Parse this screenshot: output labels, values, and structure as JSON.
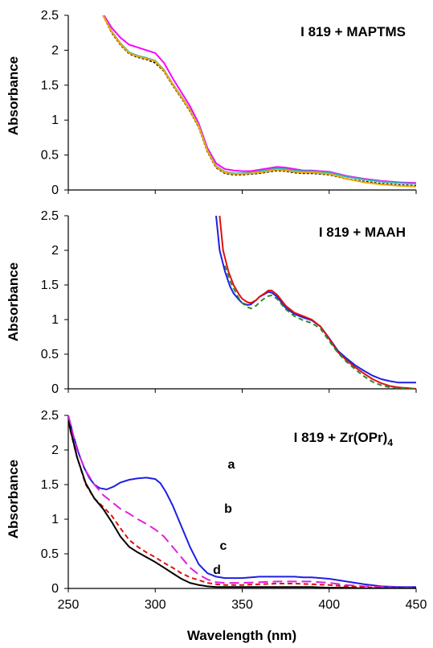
{
  "chart_data": [
    {
      "type": "line",
      "title": "I 819 + MAPTMS",
      "xlabel": "",
      "ylabel": "Absorbance",
      "xlim": [
        250,
        450
      ],
      "ylim": [
        0,
        2.5
      ],
      "yticks": [
        "0",
        "0.5",
        "1",
        "1.5",
        "2",
        "2.5"
      ],
      "series": [
        {
          "color": "#ff00ff",
          "dash": "solid",
          "x": [
            270,
            275,
            280,
            285,
            290,
            295,
            300,
            305,
            310,
            315,
            320,
            325,
            330,
            335,
            340,
            345,
            350,
            355,
            360,
            365,
            370,
            375,
            380,
            385,
            390,
            395,
            400,
            410,
            420,
            430,
            440,
            450
          ],
          "y": [
            2.52,
            2.32,
            2.18,
            2.08,
            2.04,
            2.0,
            1.96,
            1.82,
            1.6,
            1.4,
            1.2,
            0.95,
            0.6,
            0.38,
            0.3,
            0.28,
            0.27,
            0.27,
            0.29,
            0.31,
            0.33,
            0.32,
            0.3,
            0.28,
            0.28,
            0.27,
            0.26,
            0.2,
            0.16,
            0.13,
            0.11,
            0.1
          ]
        },
        {
          "color": "#000000",
          "dash": "3 2",
          "x": [
            270,
            275,
            280,
            285,
            290,
            295,
            300,
            305,
            310,
            315,
            320,
            325,
            330,
            335,
            340,
            345,
            350,
            355,
            360,
            365,
            370,
            375,
            380,
            385,
            390,
            395,
            400,
            410,
            420,
            430,
            440,
            450
          ],
          "y": [
            2.5,
            2.25,
            2.08,
            1.95,
            1.9,
            1.87,
            1.82,
            1.7,
            1.5,
            1.32,
            1.13,
            0.9,
            0.55,
            0.32,
            0.24,
            0.22,
            0.22,
            0.23,
            0.24,
            0.26,
            0.28,
            0.27,
            0.25,
            0.24,
            0.24,
            0.23,
            0.22,
            0.16,
            0.12,
            0.09,
            0.07,
            0.06
          ]
        },
        {
          "color": "#2db5b5",
          "dash": "solid",
          "x": [
            270,
            275,
            280,
            285,
            290,
            295,
            300,
            305,
            310,
            315,
            320,
            325,
            330,
            335,
            340,
            345,
            350,
            355,
            360,
            365,
            370,
            375,
            380,
            385,
            390,
            395,
            400,
            410,
            420,
            430,
            440,
            450
          ],
          "y": [
            2.5,
            2.27,
            2.1,
            1.97,
            1.92,
            1.89,
            1.85,
            1.72,
            1.52,
            1.34,
            1.15,
            0.92,
            0.57,
            0.34,
            0.26,
            0.24,
            0.24,
            0.25,
            0.27,
            0.29,
            0.31,
            0.3,
            0.28,
            0.27,
            0.27,
            0.26,
            0.25,
            0.19,
            0.15,
            0.12,
            0.1,
            0.09
          ]
        },
        {
          "color": "#f2a900",
          "dash": "solid",
          "x": [
            270,
            275,
            280,
            285,
            290,
            295,
            300,
            305,
            310,
            315,
            320,
            325,
            330,
            335,
            340,
            345,
            350,
            355,
            360,
            365,
            370,
            375,
            380,
            385,
            390,
            395,
            400,
            410,
            420,
            430,
            440,
            450
          ],
          "y": [
            2.5,
            2.26,
            2.09,
            1.96,
            1.91,
            1.88,
            1.84,
            1.71,
            1.51,
            1.33,
            1.14,
            0.91,
            0.56,
            0.33,
            0.25,
            0.23,
            0.23,
            0.24,
            0.25,
            0.27,
            0.29,
            0.28,
            0.26,
            0.25,
            0.25,
            0.24,
            0.23,
            0.16,
            0.11,
            0.08,
            0.06,
            0.05
          ]
        }
      ]
    },
    {
      "type": "line",
      "title": "I 819 + MAAH",
      "xlabel": "",
      "ylabel": "Absorbance",
      "xlim": [
        250,
        450
      ],
      "ylim": [
        0,
        2.5
      ],
      "yticks": [
        "0",
        "0.5",
        "1",
        "1.5",
        "2",
        "2.5"
      ],
      "series": [
        {
          "color": "#1f1fe6",
          "dash": "solid",
          "x": [
            335,
            337,
            340,
            343,
            345,
            348,
            350,
            353,
            355,
            358,
            360,
            363,
            365,
            367,
            370,
            375,
            380,
            385,
            390,
            395,
            400,
            405,
            410,
            415,
            420,
            425,
            430,
            435,
            440,
            445,
            450
          ],
          "y": [
            2.5,
            2.0,
            1.7,
            1.48,
            1.38,
            1.29,
            1.24,
            1.21,
            1.22,
            1.28,
            1.33,
            1.37,
            1.4,
            1.39,
            1.33,
            1.17,
            1.08,
            1.03,
            0.99,
            0.9,
            0.73,
            0.55,
            0.44,
            0.34,
            0.26,
            0.19,
            0.14,
            0.11,
            0.09,
            0.09,
            0.09
          ]
        },
        {
          "color": "#e01010",
          "dash": "solid",
          "x": [
            337,
            339,
            342,
            345,
            348,
            350,
            353,
            355,
            358,
            360,
            363,
            365,
            367,
            370,
            375,
            380,
            385,
            390,
            395,
            400,
            405,
            410,
            415,
            420,
            425,
            430,
            435,
            440,
            445,
            450
          ],
          "y": [
            2.5,
            2.0,
            1.7,
            1.5,
            1.37,
            1.3,
            1.25,
            1.24,
            1.28,
            1.33,
            1.38,
            1.42,
            1.42,
            1.36,
            1.2,
            1.1,
            1.05,
            1.0,
            0.9,
            0.72,
            0.53,
            0.41,
            0.31,
            0.22,
            0.14,
            0.08,
            0.04,
            0.02,
            0.01,
            0.0
          ]
        },
        {
          "color": "#2e8b2e",
          "dash": "6 4",
          "x": [
            340,
            343,
            345,
            348,
            350,
            353,
            355,
            358,
            360,
            363,
            365,
            367,
            370,
            375,
            380,
            385,
            390,
            395,
            400,
            405,
            410,
            415,
            420,
            425,
            430,
            435,
            440,
            445,
            450
          ],
          "y": [
            1.78,
            1.56,
            1.45,
            1.31,
            1.24,
            1.18,
            1.16,
            1.2,
            1.25,
            1.31,
            1.34,
            1.35,
            1.3,
            1.15,
            1.05,
            0.99,
            0.95,
            0.87,
            0.69,
            0.52,
            0.39,
            0.28,
            0.18,
            0.1,
            0.05,
            0.02,
            0.01,
            0.0,
            0.0
          ]
        }
      ]
    },
    {
      "type": "line",
      "title": "I 819 + Zr(OPr)4",
      "xlabel": "Wavelength (nm)",
      "ylabel": "Absorbance",
      "xlim": [
        250,
        450
      ],
      "ylim": [
        0,
        2.5
      ],
      "xticks": [
        "250",
        "300",
        "350",
        "400",
        "450"
      ],
      "yticks": [
        "0",
        "0.5",
        "1",
        "1.5",
        "2",
        "2.5"
      ],
      "annotations": [
        "a",
        "b",
        "c",
        "d"
      ],
      "series": [
        {
          "label": "a",
          "color": "#1f1fe6",
          "dash": "solid",
          "x": [
            250,
            253,
            256,
            259,
            262,
            265,
            268,
            272,
            276,
            280,
            285,
            290,
            295,
            300,
            303,
            306,
            310,
            315,
            320,
            325,
            330,
            335,
            340,
            345,
            350,
            355,
            360,
            365,
            370,
            375,
            380,
            385,
            390,
            395,
            400,
            410,
            420,
            430,
            440,
            450
          ],
          "y": [
            2.5,
            2.2,
            1.95,
            1.75,
            1.6,
            1.5,
            1.45,
            1.43,
            1.47,
            1.53,
            1.57,
            1.59,
            1.6,
            1.58,
            1.52,
            1.4,
            1.2,
            0.9,
            0.6,
            0.35,
            0.22,
            0.17,
            0.15,
            0.15,
            0.15,
            0.16,
            0.17,
            0.17,
            0.17,
            0.17,
            0.17,
            0.16,
            0.16,
            0.15,
            0.14,
            0.1,
            0.06,
            0.03,
            0.02,
            0.02
          ]
        },
        {
          "label": "b",
          "color": "#e020e0",
          "dash": "12 6",
          "x": [
            250,
            255,
            260,
            265,
            270,
            275,
            280,
            285,
            290,
            295,
            300,
            305,
            310,
            315,
            320,
            325,
            330,
            335,
            340,
            345,
            350,
            360,
            370,
            380,
            390,
            400,
            410,
            420,
            430,
            440,
            450
          ],
          "y": [
            2.5,
            2.0,
            1.7,
            1.5,
            1.35,
            1.25,
            1.15,
            1.08,
            1.0,
            0.93,
            0.85,
            0.75,
            0.6,
            0.45,
            0.3,
            0.2,
            0.13,
            0.09,
            0.08,
            0.08,
            0.08,
            0.09,
            0.1,
            0.1,
            0.1,
            0.08,
            0.05,
            0.03,
            0.02,
            0.01,
            0.01
          ]
        },
        {
          "label": "c",
          "color": "#e01010",
          "dash": "6 4",
          "x": [
            250,
            255,
            260,
            265,
            270,
            275,
            280,
            285,
            290,
            295,
            300,
            305,
            310,
            315,
            320,
            325,
            330,
            335,
            340,
            345,
            350,
            360,
            370,
            380,
            390,
            400,
            410,
            420,
            430,
            440,
            450
          ],
          "y": [
            2.4,
            1.9,
            1.5,
            1.3,
            1.18,
            1.05,
            0.87,
            0.7,
            0.6,
            0.52,
            0.45,
            0.37,
            0.3,
            0.22,
            0.16,
            0.12,
            0.08,
            0.06,
            0.05,
            0.05,
            0.05,
            0.06,
            0.07,
            0.07,
            0.06,
            0.05,
            0.03,
            0.02,
            0.01,
            0.01,
            0.0
          ]
        },
        {
          "label": "d",
          "color": "#000000",
          "dash": "solid",
          "x": [
            250,
            255,
            260,
            265,
            270,
            275,
            280,
            285,
            290,
            295,
            300,
            305,
            310,
            315,
            320,
            325,
            330,
            335,
            340,
            345,
            350,
            360,
            370,
            380,
            390,
            400,
            410,
            420,
            430,
            440,
            450
          ],
          "y": [
            2.42,
            1.9,
            1.52,
            1.3,
            1.15,
            0.96,
            0.75,
            0.6,
            0.52,
            0.45,
            0.38,
            0.3,
            0.22,
            0.14,
            0.08,
            0.05,
            0.03,
            0.02,
            0.02,
            0.02,
            0.02,
            0.02,
            0.02,
            0.02,
            0.02,
            0.01,
            0.01,
            0.0,
            0.0,
            0.0,
            0.0
          ]
        }
      ]
    }
  ],
  "panels": [
    {
      "title": "I 819 + MAPTMS",
      "ylabel": "Absorbance"
    },
    {
      "title": "I 819 + MAAH",
      "ylabel": "Absorbance"
    },
    {
      "title_main": "I 819 + Zr(OPr)",
      "title_sub": "4",
      "ylabel": "Absorbance",
      "xlabel": "Wavelength (nm)"
    }
  ]
}
